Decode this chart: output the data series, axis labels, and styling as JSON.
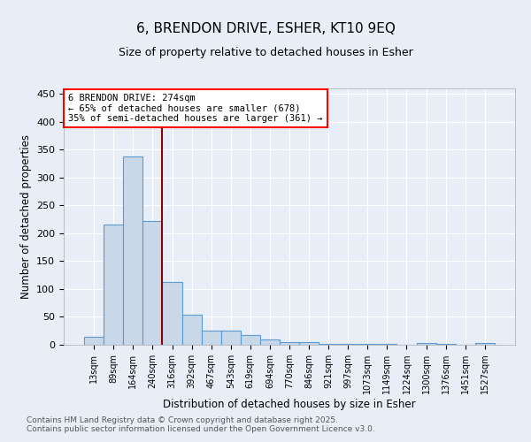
{
  "title1": "6, BRENDON DRIVE, ESHER, KT10 9EQ",
  "title2": "Size of property relative to detached houses in Esher",
  "xlabel": "Distribution of detached houses by size in Esher",
  "ylabel": "Number of detached properties",
  "categories": [
    "13sqm",
    "89sqm",
    "164sqm",
    "240sqm",
    "316sqm",
    "392sqm",
    "467sqm",
    "543sqm",
    "619sqm",
    "694sqm",
    "770sqm",
    "846sqm",
    "921sqm",
    "997sqm",
    "1073sqm",
    "1149sqm",
    "1224sqm",
    "1300sqm",
    "1376sqm",
    "1451sqm",
    "1527sqm"
  ],
  "values": [
    15,
    216,
    338,
    222,
    112,
    54,
    26,
    25,
    18,
    9,
    5,
    4,
    2,
    2,
    1,
    1,
    0,
    3,
    1,
    0,
    3
  ],
  "bar_color": "#c8d8e8",
  "bar_edge_color": "#5b9bd5",
  "vline_x_index": 3,
  "vline_color": "#8b0000",
  "annotation_text": "6 BRENDON DRIVE: 274sqm\n← 65% of detached houses are smaller (678)\n35% of semi-detached houses are larger (361) →",
  "annotation_box_color": "white",
  "annotation_box_edge_color": "red",
  "ylim": [
    0,
    460
  ],
  "yticks": [
    0,
    50,
    100,
    150,
    200,
    250,
    300,
    350,
    400,
    450
  ],
  "footer": "Contains HM Land Registry data © Crown copyright and database right 2025.\nContains public sector information licensed under the Open Government Licence v3.0.",
  "background_color": "#e8eef8",
  "grid_color": "white"
}
